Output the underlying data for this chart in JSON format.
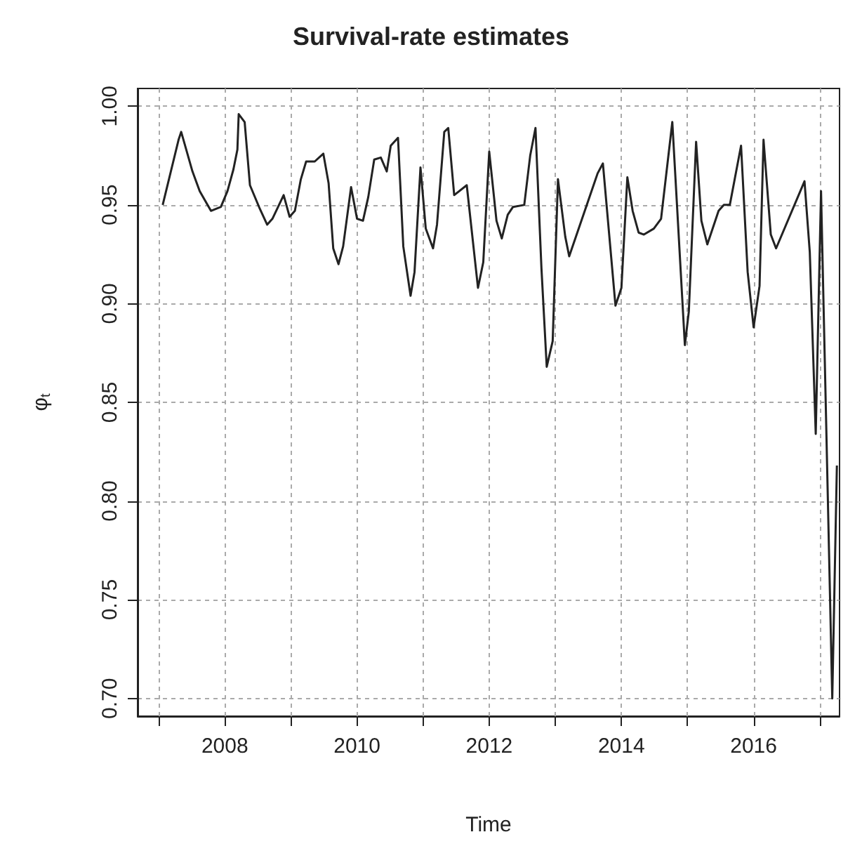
{
  "chart_data": {
    "type": "line",
    "title": "Survival-rate estimates",
    "xlabel": "Time",
    "ylabel": "φ$_{t}$",
    "x": [
      2007.06,
      2007.3,
      2007.34,
      2007.51,
      2007.62,
      2007.79,
      2007.94,
      2008.04,
      2008.13,
      2008.19,
      2008.21,
      2008.3,
      2008.38,
      2008.53,
      2008.64,
      2008.72,
      2008.89,
      2008.98,
      2009.06,
      2009.15,
      2009.23,
      2009.36,
      2009.49,
      2009.57,
      2009.64,
      2009.72,
      2009.79,
      2009.91,
      2010.0,
      2010.09,
      2010.17,
      2010.26,
      2010.36,
      2010.45,
      2010.51,
      2010.62,
      2010.7,
      2010.81,
      2010.87,
      2010.96,
      2011.04,
      2011.15,
      2011.21,
      2011.32,
      2011.38,
      2011.47,
      2011.66,
      2011.83,
      2011.91,
      2012.0,
      2012.11,
      2012.19,
      2012.28,
      2012.36,
      2012.53,
      2012.62,
      2012.7,
      2012.79,
      2012.87,
      2012.96,
      2013.04,
      2013.15,
      2013.21,
      2013.64,
      2013.72,
      2013.91,
      2014.0,
      2014.09,
      2014.17,
      2014.26,
      2014.34,
      2014.49,
      2014.6,
      2014.77,
      2014.96,
      2015.02,
      2015.13,
      2015.21,
      2015.3,
      2015.47,
      2015.55,
      2015.64,
      2015.81,
      2015.91,
      2016.0,
      2016.09,
      2016.15,
      2016.26,
      2016.34,
      2016.77,
      2016.85,
      2016.94,
      2017.02,
      2017.19,
      2017.26
    ],
    "series": [
      {
        "color": "#222222",
        "values": [
          0.95,
          0.983,
          0.987,
          0.967,
          0.957,
          0.947,
          0.949,
          0.957,
          0.968,
          0.978,
          0.996,
          0.992,
          0.96,
          0.948,
          0.94,
          0.943,
          0.955,
          0.944,
          0.947,
          0.963,
          0.972,
          0.972,
          0.976,
          0.961,
          0.928,
          0.92,
          0.929,
          0.959,
          0.943,
          0.942,
          0.954,
          0.973,
          0.974,
          0.967,
          0.98,
          0.984,
          0.929,
          0.904,
          0.916,
          0.969,
          0.938,
          0.928,
          0.94,
          0.987,
          0.989,
          0.955,
          0.96,
          0.908,
          0.921,
          0.977,
          0.942,
          0.933,
          0.945,
          0.949,
          0.95,
          0.975,
          0.989,
          0.918,
          0.868,
          0.881,
          0.963,
          0.934,
          0.924,
          0.966,
          0.971,
          0.899,
          0.908,
          0.964,
          0.947,
          0.936,
          0.935,
          0.938,
          0.943,
          0.992,
          0.879,
          0.896,
          0.982,
          0.942,
          0.93,
          0.947,
          0.95,
          0.95,
          0.98,
          0.916,
          0.888,
          0.909,
          0.983,
          0.935,
          0.928,
          0.962,
          0.926,
          0.834,
          0.957,
          0.7,
          0.818
        ]
      }
    ],
    "xlim": [
      2006.68,
      2017.3
    ],
    "xticks": [
      {
        "value": 2007,
        "label": null
      },
      2008,
      {
        "value": 2009,
        "label": null
      },
      2010,
      {
        "value": 2011,
        "label": null
      },
      2012,
      {
        "value": 2013,
        "label": null
      },
      2014,
      {
        "value": 2015,
        "label": null
      },
      2016,
      {
        "value": 2017,
        "label": null
      }
    ],
    "ylim": [
      0.691,
      1.009
    ],
    "yticks": [
      {
        "value": 0.7,
        "label": "0.70"
      },
      {
        "value": 0.75,
        "label": "0.75"
      },
      {
        "value": 0.8,
        "label": "0.80"
      },
      {
        "value": 0.85,
        "label": "0.85"
      },
      {
        "value": 0.9,
        "label": "0.90"
      },
      {
        "value": 0.95,
        "label": "0.95"
      },
      {
        "value": 1.0,
        "label": "1.00"
      }
    ],
    "grid": true,
    "marker": "none",
    "line_style": "solid",
    "legend": false
  }
}
